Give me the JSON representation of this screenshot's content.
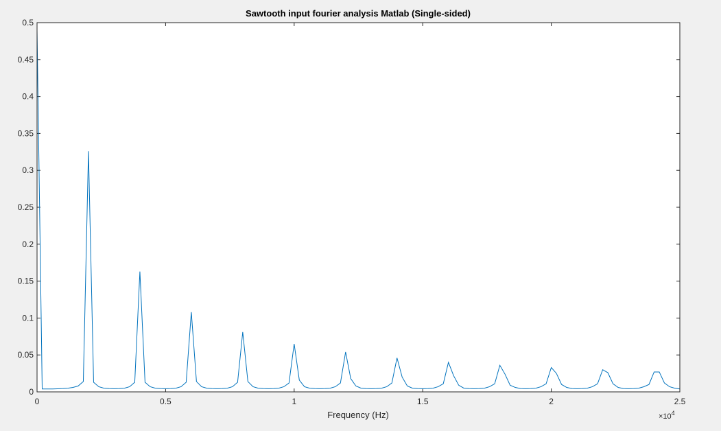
{
  "figure": {
    "background": "#f0f0f0",
    "axes_background": "#ffffff",
    "line_color": "#0072bd",
    "axis_color": "#262626"
  },
  "chart_data": {
    "type": "line",
    "title": "Sawtooth input fourier analysis Matlab (Single-sided)",
    "xlabel": "Frequency (Hz)",
    "ylabel": "",
    "xlim": [
      0,
      25000
    ],
    "ylim": [
      0,
      0.5
    ],
    "xticks": [
      0,
      5000,
      10000,
      15000,
      20000,
      25000
    ],
    "xtick_labels": [
      "0",
      "0.5",
      "1",
      "1.5",
      "2",
      "2.5"
    ],
    "x_exponent_label": "×10",
    "x_exponent_power": "4",
    "yticks": [
      0,
      0.05,
      0.1,
      0.15,
      0.2,
      0.25,
      0.3,
      0.35,
      0.4,
      0.45,
      0.5
    ],
    "ytick_labels": [
      "0",
      "0.05",
      "0.1",
      "0.15",
      "0.2",
      "0.25",
      "0.3",
      "0.35",
      "0.4",
      "0.45",
      "0.5"
    ],
    "grid": false,
    "series": [
      {
        "x": [
          0,
          200,
          400,
          600,
          800,
          1000,
          1200,
          1400,
          1600,
          1800,
          2000,
          2200,
          2400,
          2600,
          2800,
          3000,
          3200,
          3400,
          3600,
          3800,
          4000,
          4200,
          4400,
          4600,
          4800,
          5000,
          5200,
          5400,
          5600,
          5800,
          6000,
          6200,
          6400,
          6600,
          6800,
          7000,
          7200,
          7400,
          7600,
          7800,
          8000,
          8200,
          8400,
          8600,
          8800,
          9000,
          9200,
          9400,
          9600,
          9800,
          10000,
          10200,
          10400,
          10600,
          10800,
          11000,
          11200,
          11400,
          11600,
          11800,
          12000,
          12200,
          12400,
          12600,
          12800,
          13000,
          13200,
          13400,
          13600,
          13800,
          14000,
          14200,
          14400,
          14600,
          14800,
          15000,
          15200,
          15400,
          15600,
          15800,
          16000,
          16200,
          16400,
          16600,
          16800,
          17000,
          17200,
          17400,
          17600,
          17800,
          18000,
          18200,
          18400,
          18600,
          18800,
          19000,
          19200,
          19400,
          19600,
          19800,
          20000,
          20200,
          20400,
          20600,
          20800,
          21000,
          21200,
          21400,
          21600,
          21800,
          22000,
          22200,
          22400,
          22600,
          22800,
          23000,
          23200,
          23400,
          23600,
          23800,
          24000,
          24200,
          24400,
          24600,
          24800,
          25000
        ],
        "y": [
          0.49,
          0.004,
          0.004,
          0.004,
          0.0042,
          0.0045,
          0.005,
          0.006,
          0.008,
          0.014,
          0.326,
          0.013,
          0.007,
          0.005,
          0.0045,
          0.0043,
          0.0045,
          0.005,
          0.007,
          0.013,
          0.163,
          0.013,
          0.007,
          0.005,
          0.0045,
          0.0043,
          0.0045,
          0.005,
          0.007,
          0.013,
          0.108,
          0.014,
          0.007,
          0.005,
          0.0045,
          0.0043,
          0.0045,
          0.005,
          0.007,
          0.013,
          0.081,
          0.014,
          0.007,
          0.005,
          0.0045,
          0.0043,
          0.0045,
          0.005,
          0.007,
          0.012,
          0.065,
          0.016,
          0.007,
          0.005,
          0.0045,
          0.0043,
          0.0045,
          0.005,
          0.007,
          0.012,
          0.054,
          0.018,
          0.008,
          0.005,
          0.0045,
          0.0043,
          0.0045,
          0.005,
          0.007,
          0.012,
          0.046,
          0.02,
          0.008,
          0.005,
          0.0045,
          0.0043,
          0.0045,
          0.005,
          0.007,
          0.011,
          0.04,
          0.022,
          0.009,
          0.005,
          0.0045,
          0.0043,
          0.0045,
          0.005,
          0.007,
          0.011,
          0.036,
          0.024,
          0.009,
          0.006,
          0.0045,
          0.0043,
          0.0045,
          0.005,
          0.007,
          0.011,
          0.033,
          0.025,
          0.01,
          0.006,
          0.0045,
          0.0043,
          0.0045,
          0.005,
          0.007,
          0.011,
          0.03,
          0.026,
          0.011,
          0.006,
          0.0045,
          0.0043,
          0.0045,
          0.005,
          0.007,
          0.01,
          0.027,
          0.027,
          0.012,
          0.007,
          0.005,
          0.004
        ]
      }
    ]
  }
}
